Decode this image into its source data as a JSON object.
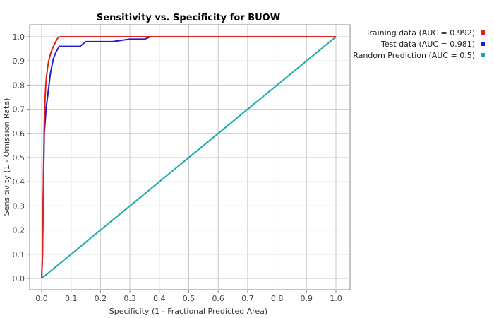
{
  "chart_data": {
    "type": "line",
    "title": "Sensitivity vs. Specificity for BUOW",
    "xlabel": "Specificity  (1 - Fractional Predicted Area)",
    "ylabel": "Sensitivity  (1 - Omission Rate)",
    "xlim": [
      0,
      1.0
    ],
    "ylim": [
      0,
      1.05
    ],
    "xticks": [
      "0.0",
      "0.1",
      "0.2",
      "0.3",
      "0.4",
      "0.5",
      "0.6",
      "0.7",
      "0.8",
      "0.9",
      "1.0"
    ],
    "yticks": [
      "0.0",
      "0.1",
      "0.2",
      "0.3",
      "0.4",
      "0.5",
      "0.6",
      "0.7",
      "0.8",
      "0.9",
      "1.0"
    ],
    "grid": true,
    "legend_position": "top-right, outside plot",
    "series": [
      {
        "name": "Training data (AUC = 0.992)",
        "color": "#e51e1e",
        "x": [
          0,
          0.003,
          0.005,
          0.007,
          0.009,
          0.012,
          0.014,
          0.017,
          0.02,
          0.024,
          0.028,
          0.033,
          0.04,
          0.05,
          0.055,
          0.06,
          0.1,
          0.2,
          0.3,
          0.4,
          0.5,
          0.6,
          0.7,
          0.8,
          0.9,
          1.0
        ],
        "y": [
          0,
          0.1,
          0.3,
          0.5,
          0.65,
          0.75,
          0.8,
          0.84,
          0.87,
          0.9,
          0.92,
          0.94,
          0.96,
          0.985,
          0.995,
          1.0,
          1.0,
          1.0,
          1.0,
          1.0,
          1.0,
          1.0,
          1.0,
          1.0,
          1.0,
          1.0
        ]
      },
      {
        "name": "Test data (AUC = 0.981)",
        "color": "#1c1cd6",
        "x": [
          0,
          0.003,
          0.005,
          0.007,
          0.009,
          0.012,
          0.015,
          0.02,
          0.025,
          0.03,
          0.035,
          0.04,
          0.05,
          0.06,
          0.08,
          0.13,
          0.14,
          0.15,
          0.18,
          0.24,
          0.3,
          0.35,
          0.37,
          0.38,
          0.4,
          0.5,
          0.6,
          0.7,
          0.8,
          0.9,
          1.0
        ],
        "y": [
          0,
          0.1,
          0.3,
          0.45,
          0.6,
          0.65,
          0.7,
          0.75,
          0.8,
          0.85,
          0.88,
          0.91,
          0.94,
          0.96,
          0.96,
          0.96,
          0.97,
          0.98,
          0.98,
          0.98,
          0.99,
          0.99,
          1.0,
          1.0,
          1.0,
          1.0,
          1.0,
          1.0,
          1.0,
          1.0,
          1.0
        ]
      },
      {
        "name": "Random Prediction (AUC = 0.5)",
        "color": "#18aaaa",
        "x": [
          0,
          1.0
        ],
        "y": [
          0,
          1.0
        ]
      }
    ]
  }
}
